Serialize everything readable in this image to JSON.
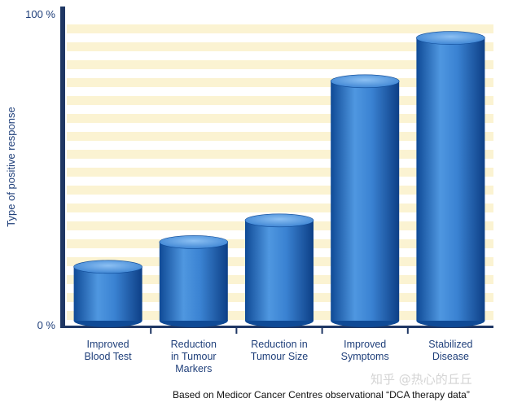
{
  "chart_data": {
    "type": "bar",
    "categories": [
      [
        "Improved",
        "Blood Test"
      ],
      [
        "Reduction",
        "in Tumour",
        "Markers"
      ],
      [
        "Reduction in",
        "Tumour Size"
      ],
      [
        "Improved",
        "Symptoms"
      ],
      [
        "Stabilized",
        "Disease"
      ]
    ],
    "values": [
      19,
      27,
      34,
      79,
      93
    ],
    "ylabel": "Type of positive response",
    "ylim": [
      0,
      100
    ],
    "yticks": [
      "0 %",
      "100 %"
    ],
    "grid": true,
    "colors": {
      "bar": "#2f78c8",
      "bar_light": "#7fb6f0",
      "bar_dark": "#0f4a96",
      "axis": "#1f3764",
      "text": "#1f3f7a",
      "stripe": "#fbf3d2"
    }
  },
  "caption": "Based on Medicor Cancer Centres observational “DCA therapy data”",
  "watermark": "知乎 @热心的丘丘"
}
